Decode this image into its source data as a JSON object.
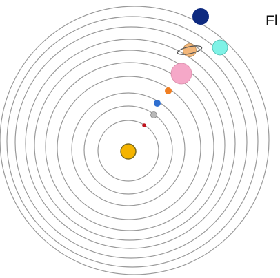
{
  "label": "Fl"
}
